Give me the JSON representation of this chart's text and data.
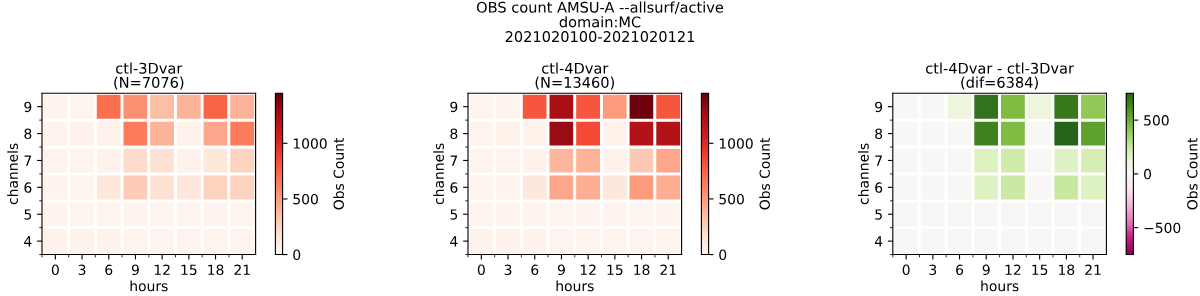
{
  "chart_data": [
    {
      "type": "heatmap",
      "title": "ctl-3Dvar\n(N=7076)",
      "xlabel": "hours",
      "ylabel": "channels",
      "clabel": "Obs Count",
      "annotations": [
        "OBS count AMSU-A --allsurf/active\ndomain:MC\n2021020100-2021020121"
      ],
      "categories": [
        "0",
        "3",
        "6",
        "9",
        "12",
        "15",
        "18",
        "21"
      ],
      "y_categories": [
        "9",
        "8",
        "7",
        "6",
        "5",
        "4"
      ],
      "cells": [
        [
          20,
          20,
          700,
          550,
          350,
          400,
          750,
          400
        ],
        [
          20,
          30,
          30,
          650,
          400,
          30,
          450,
          650
        ],
        [
          20,
          20,
          30,
          200,
          180,
          30,
          130,
          250
        ],
        [
          20,
          20,
          130,
          280,
          180,
          120,
          250,
          250
        ],
        [
          20,
          20,
          20,
          10,
          10,
          10,
          10,
          10
        ],
        [
          30,
          30,
          30,
          20,
          20,
          20,
          20,
          20
        ]
      ],
      "clim": [
        0,
        1450
      ],
      "cticks": [
        0,
        500,
        1000
      ],
      "colors": [
        "#fff5f0",
        "#fee0d2",
        "#fcbba1",
        "#fc9272",
        "#fb6a4a",
        "#ef3b2c",
        "#cb181d",
        "#a50f15",
        "#67000d"
      ]
    },
    {
      "type": "heatmap",
      "title": "ctl-4Dvar\n(N=13460)",
      "xlabel": "hours",
      "ylabel": "channels",
      "clabel": "Obs Count",
      "categories": [
        "0",
        "3",
        "6",
        "9",
        "12",
        "15",
        "18",
        "21"
      ],
      "y_categories": [
        "9",
        "8",
        "7",
        "6",
        "5",
        "4"
      ],
      "cells": [
        [
          20,
          20,
          800,
          1250,
          800,
          500,
          1430,
          800
        ],
        [
          20,
          30,
          30,
          1300,
          850,
          30,
          1200,
          1200
        ],
        [
          20,
          20,
          30,
          380,
          400,
          30,
          300,
          450
        ],
        [
          20,
          20,
          130,
          450,
          420,
          120,
          500,
          420
        ],
        [
          20,
          20,
          20,
          10,
          10,
          10,
          10,
          10
        ],
        [
          30,
          30,
          30,
          20,
          20,
          20,
          20,
          20
        ]
      ],
      "clim": [
        0,
        1450
      ],
      "cticks": [
        0,
        500,
        1000
      ],
      "colors": [
        "#fff5f0",
        "#fee0d2",
        "#fcbba1",
        "#fc9272",
        "#fb6a4a",
        "#ef3b2c",
        "#cb181d",
        "#a50f15",
        "#67000d"
      ]
    },
    {
      "type": "heatmap",
      "title": "ctl-4Dvar - ctl-3Dvar\n(dif=6384)",
      "xlabel": "hours",
      "ylabel": "channels",
      "clabel": "Obs Count",
      "categories": [
        "0",
        "3",
        "6",
        "9",
        "12",
        "15",
        "18",
        "21"
      ],
      "y_categories": [
        "9",
        "8",
        "7",
        "6",
        "5",
        "4"
      ],
      "cells": [
        [
          0,
          0,
          100,
          700,
          450,
          100,
          680,
          400
        ],
        [
          0,
          0,
          0,
          650,
          450,
          0,
          750,
          550
        ],
        [
          0,
          0,
          0,
          180,
          220,
          0,
          170,
          200
        ],
        [
          0,
          0,
          0,
          170,
          240,
          0,
          250,
          170
        ],
        [
          0,
          0,
          0,
          0,
          0,
          0,
          0,
          0
        ],
        [
          0,
          0,
          0,
          0,
          0,
          0,
          0,
          0
        ]
      ],
      "clim": [
        -750,
        750
      ],
      "cticks": [
        {
          "value": -500,
          "label": "−500"
        },
        0,
        500
      ],
      "colors": [
        "#8e0152",
        "#c51b7d",
        "#de77ae",
        "#f1b6da",
        "#fde0ef",
        "#f7f7f7",
        "#e6f5d0",
        "#b8e186",
        "#7fbc41",
        "#4d9221",
        "#276419"
      ]
    }
  ]
}
